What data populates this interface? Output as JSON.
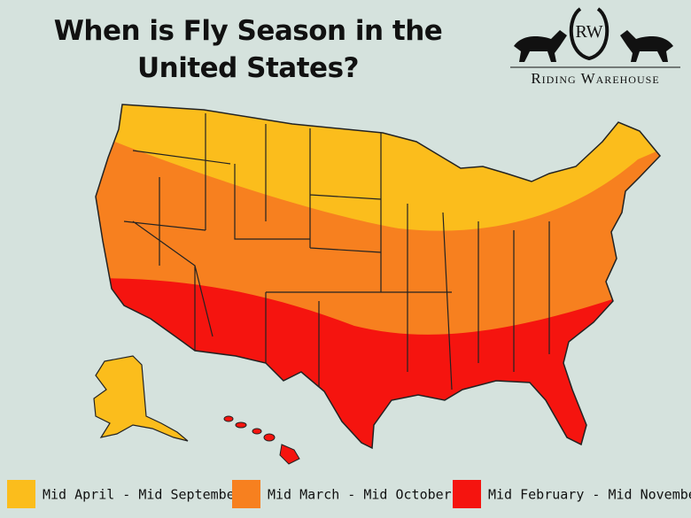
{
  "header": {
    "title": "When is Fly Season in the United States?",
    "logo": {
      "monogram": "RW",
      "name": "Riding Warehouse"
    }
  },
  "legend": [
    {
      "label": "Mid April - Mid September",
      "color": "#fbbd1c"
    },
    {
      "label": "Mid March - Mid October",
      "color": "#f7801f"
    },
    {
      "label": "Mid February - Mid November",
      "color": "#f5140f"
    }
  ]
}
